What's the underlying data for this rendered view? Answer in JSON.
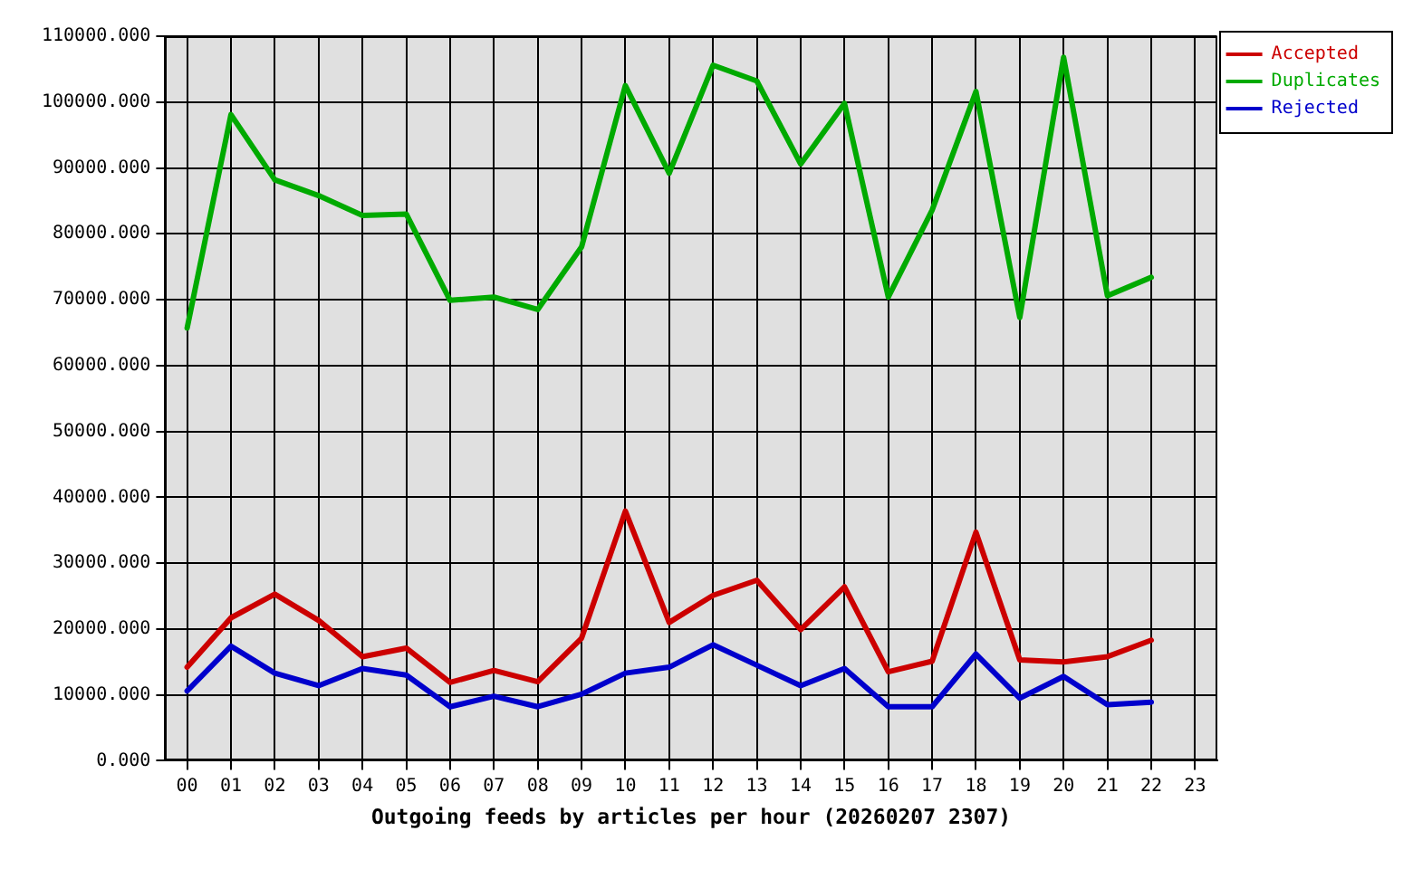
{
  "chart_data": {
    "type": "line",
    "xlabel": "Outgoing feeds by articles per hour (20260207 2307)",
    "categories": [
      "00",
      "01",
      "02",
      "03",
      "04",
      "05",
      "06",
      "07",
      "08",
      "09",
      "10",
      "11",
      "12",
      "13",
      "14",
      "15",
      "16",
      "17",
      "18",
      "19",
      "20",
      "21",
      "22",
      "23"
    ],
    "series": [
      {
        "name": "Accepted",
        "color": "#cc0000",
        "values": [
          14200,
          21700,
          25300,
          21300,
          15800,
          17100,
          11900,
          13700,
          12000,
          18600,
          37900,
          21000,
          25100,
          27400,
          19900,
          26400,
          13500,
          15100,
          34700,
          15300,
          15000,
          15800,
          18300,
          null
        ]
      },
      {
        "name": "Duplicates",
        "color": "#00aa00",
        "values": [
          65700,
          98100,
          88200,
          85800,
          82800,
          83000,
          69900,
          70400,
          68500,
          78000,
          102500,
          89200,
          105600,
          103200,
          90600,
          99800,
          70400,
          83600,
          101600,
          67300,
          106800,
          70600,
          73400,
          null
        ]
      },
      {
        "name": "Rejected",
        "color": "#0000cc",
        "values": [
          10600,
          17400,
          13300,
          11400,
          14000,
          13000,
          8200,
          9800,
          8200,
          10100,
          13300,
          14200,
          17600,
          14500,
          11400,
          14000,
          8200,
          8200,
          16200,
          9500,
          12800,
          8500,
          8900,
          null
        ]
      }
    ],
    "ylim": [
      0,
      110000
    ],
    "yticks": [
      {
        "value": 0,
        "label": "0.000"
      },
      {
        "value": 10000,
        "label": "10000.000"
      },
      {
        "value": 20000,
        "label": "20000.000"
      },
      {
        "value": 30000,
        "label": "30000.000"
      },
      {
        "value": 40000,
        "label": "40000.000"
      },
      {
        "value": 50000,
        "label": "50000.000"
      },
      {
        "value": 60000,
        "label": "60000.000"
      },
      {
        "value": 70000,
        "label": "70000.000"
      },
      {
        "value": 80000,
        "label": "80000.000"
      },
      {
        "value": 90000,
        "label": "90000.000"
      },
      {
        "value": 100000,
        "label": "100000.000"
      },
      {
        "value": 110000,
        "label": "110000.000"
      }
    ],
    "grid": true,
    "legend": "top right"
  }
}
